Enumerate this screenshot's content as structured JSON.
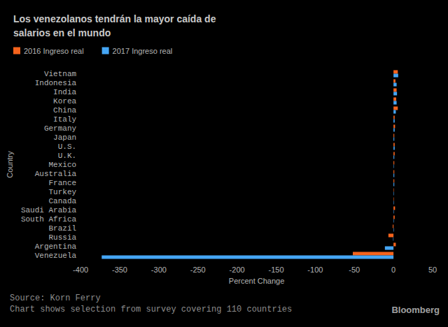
{
  "chart_data": {
    "type": "bar",
    "orientation": "horizontal",
    "title": "Los venezolanos tendrán la mayor caída de salarios en el mundo",
    "x_label": "Percent Change",
    "y_label": "Country",
    "source": "Source: Korn Ferry",
    "note": "Chart shows selection from survey covering 110 countries",
    "credit": "Bloomberg",
    "categories": [
      "Vietnam",
      "Indonesia",
      "India",
      "Korea",
      "China",
      "Italy",
      "Germany",
      "Japan",
      "U.S.",
      "U.K.",
      "Mexico",
      "Australia",
      "France",
      "Turkey",
      "Canada",
      "Saudi Arabia",
      "South Africa",
      "Brazil",
      "Russia",
      "Argentina",
      "Venezuela"
    ],
    "series": [
      {
        "name": "2016 Ingreso real",
        "color": "#f5631c",
        "values": [
          5.5,
          2.5,
          4,
          3.5,
          5.5,
          1.5,
          2,
          1,
          1.5,
          1.5,
          1,
          1,
          1,
          0.5,
          0.5,
          2,
          1.5,
          -1,
          -6.5,
          3,
          -52
        ]
      },
      {
        "name": "2017 Ingreso real",
        "color": "#45a6f5",
        "values": [
          6,
          4,
          4.5,
          4,
          3,
          1.5,
          1.5,
          1,
          1.5,
          1,
          0.5,
          1,
          1,
          0.5,
          0.5,
          0.5,
          0.5,
          0.5,
          -0.5,
          -11,
          -373
        ]
      }
    ],
    "xlim": [
      -400,
      50
    ],
    "xticks": [
      -400,
      -350,
      -300,
      -250,
      -200,
      -150,
      -100,
      -50,
      0,
      50
    ],
    "grid": false,
    "legend": "top-left",
    "data_labels": false
  }
}
